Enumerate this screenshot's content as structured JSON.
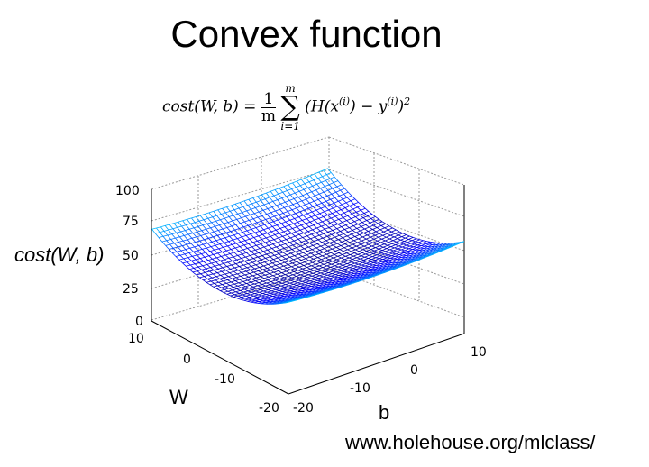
{
  "title": "Convex function",
  "formula": {
    "lhs": "cost(W, b) =",
    "frac_num": "1",
    "frac_den": "m",
    "sum_top": "m",
    "sum_bottom": "i=1",
    "body_a": "(H(x",
    "sup_i1": "(i)",
    "body_b": ") − y",
    "sup_i2": "(i)",
    "body_c": ")",
    "sup_2": "2"
  },
  "axis_labels": {
    "z": "cost(W, b)",
    "w": "W",
    "b": "b"
  },
  "source_text": "www.holehouse.org/mlclass/",
  "chart_data": {
    "type": "surface",
    "z_ticks": [
      "0",
      "25",
      "50",
      "75",
      "100"
    ],
    "w_ticks": [
      "10",
      "0",
      "-10",
      "-20"
    ],
    "b_ticks": [
      "10",
      "0",
      "-10",
      "-20"
    ],
    "zlim": [
      0,
      100
    ],
    "colormap": "jet"
  }
}
